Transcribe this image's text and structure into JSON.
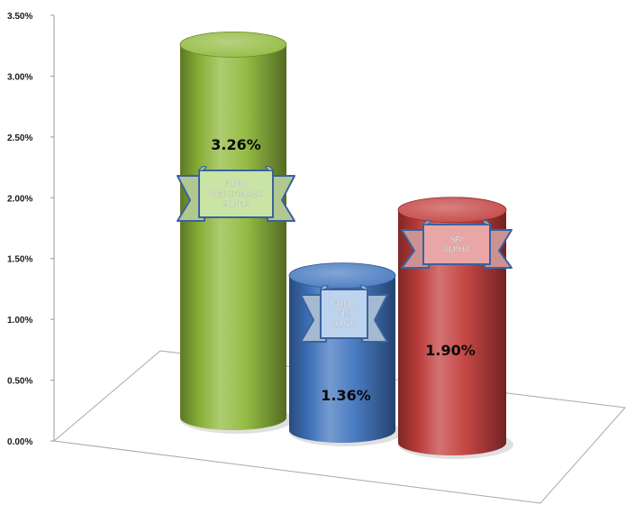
{
  "chart_data": {
    "type": "bar",
    "style": "3d-cylinder",
    "categories": [
      "FUND BENCHMARK ALPHA",
      "FUND SRI ALPHA",
      "SRI ALPHA"
    ],
    "values": [
      3.26,
      1.36,
      1.9
    ],
    "value_labels": [
      "3.26%",
      "1.36%",
      "1.90%"
    ],
    "banners": [
      [
        "FUND",
        "BENCHMARK",
        "ALPHA"
      ],
      [
        "FUND",
        "SRI",
        "ALPHA"
      ],
      [
        "SRI",
        "ALPHA"
      ]
    ],
    "colors": [
      "#8fb83a",
      "#3f74be",
      "#c23d3b"
    ],
    "banner_colors": [
      "#c9e4a4",
      "#bcd3ee",
      "#e8a6a6"
    ],
    "ylim": [
      0,
      3.5
    ],
    "y_ticks": [
      0,
      0.5,
      1.0,
      1.5,
      2.0,
      2.5,
      3.0,
      3.5
    ],
    "y_tick_labels": [
      "0.00%",
      "0.50%",
      "1.00%",
      "1.50%",
      "2.00%",
      "2.50%",
      "3.00%",
      "3.50%"
    ],
    "title": "",
    "xlabel": "",
    "ylabel": "",
    "grid": false,
    "legend": "none"
  }
}
